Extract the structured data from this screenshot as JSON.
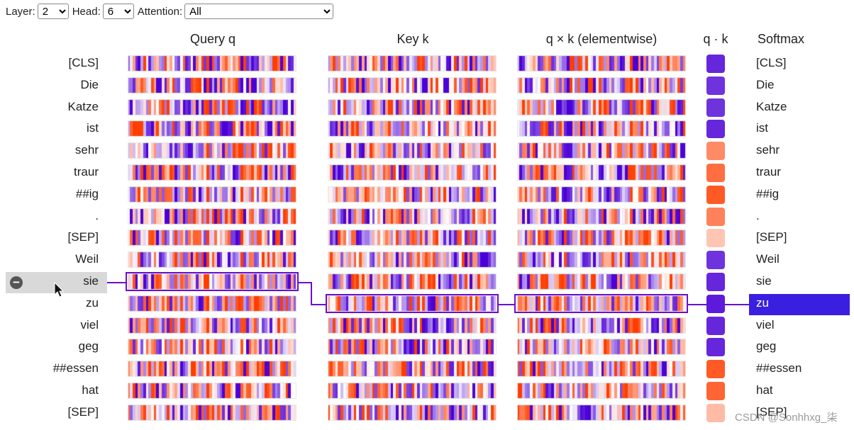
{
  "controls": {
    "layer_label": "Layer:",
    "layer_value": "2",
    "head_label": "Head:",
    "head_value": "6",
    "attention_label": "Attention:",
    "attention_value": "All"
  },
  "headers": {
    "query": "Query q",
    "key": "Key k",
    "product": "q × k (elementwise)",
    "dot": "q · k",
    "softmax": "Softmax"
  },
  "tokens": [
    "[CLS]",
    "Die",
    "Katze",
    "ist",
    "sehr",
    "traur",
    "##ig",
    ".",
    "[SEP]",
    "Weil",
    "sie",
    "zu",
    "viel",
    "geg",
    "##essen",
    "hat",
    "[SEP]"
  ],
  "selection": {
    "query_token_index": 10,
    "key_token_index": 11
  },
  "dot_values": [
    -0.85,
    -0.8,
    -0.8,
    -0.85,
    0.6,
    0.75,
    0.85,
    0.65,
    0.3,
    -0.8,
    -0.85,
    -0.9,
    -0.85,
    -0.85,
    0.85,
    0.8,
    0.35
  ],
  "colors": {
    "positive": "#ff3d00",
    "negative": "#4b00d6",
    "neutral": "#ffffff",
    "selection": "#6a0fd1",
    "softmax_highlight": "#3a1fe0"
  },
  "icons": {
    "minus": "minus-circle-icon",
    "cursor": "mouse-pointer-icon"
  },
  "watermark": "CSDN @Sonhhxg_柒"
}
